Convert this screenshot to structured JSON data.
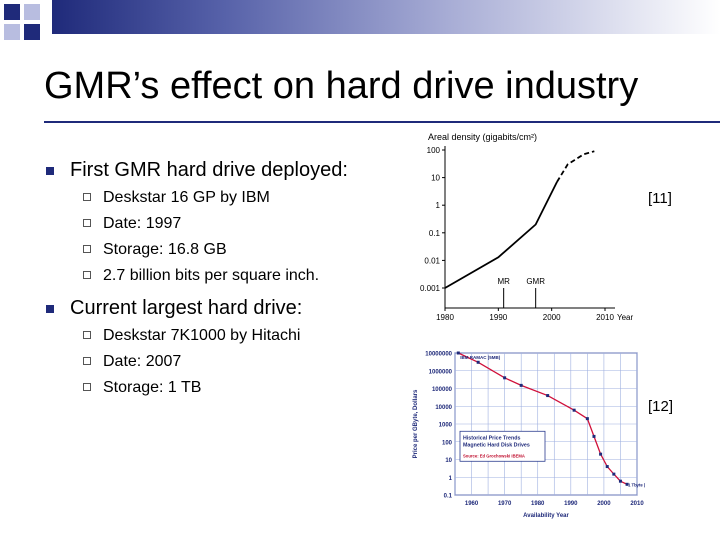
{
  "slide": {
    "title": "GMR’s effect on hard drive industry",
    "accent_color": "#1f2a7a",
    "bullets": [
      {
        "text": "First GMR hard drive deployed:",
        "sub": [
          "Deskstar 16 GP by IBM",
          "Date: 1997",
          "Storage: 16.8 GB",
          "2.7 billion bits per square inch."
        ]
      },
      {
        "text": "Current largest hard drive:",
        "sub": [
          "Deskstar 7K1000 by Hitachi",
          "Date: 2007",
          "Storage: 1 TB"
        ]
      }
    ],
    "ref1": "[11]",
    "ref2": "[12]"
  },
  "chart_data": [
    {
      "type": "line",
      "title": "Areal density (gigabits/cm²)",
      "xlabel": "Year",
      "yscale": "log",
      "xlim": [
        1980,
        2010
      ],
      "ylim": [
        0.001,
        100
      ],
      "x_ticks": [
        "1980",
        "1990",
        "2000",
        "2010"
      ],
      "y_ticks": [
        "100",
        "10",
        "1",
        "0.1",
        "0.01",
        "0.001"
      ],
      "series": [
        {
          "style": "solid",
          "x": [
            1980,
            1990,
            1997,
            2001
          ],
          "y": [
            0.001,
            0.013,
            0.2,
            7
          ]
        },
        {
          "style": "dashed",
          "x": [
            2001,
            2003,
            2006,
            2008
          ],
          "y": [
            7,
            30,
            70,
            90
          ]
        }
      ],
      "annotations": [
        {
          "label": "MR",
          "x": 1991
        },
        {
          "label": "GMR",
          "x": 1997
        }
      ]
    },
    {
      "type": "line",
      "title": "Historical Price Trends Magnetic Hard Disk Drives",
      "source": "Source: Ed Grochowski IBEMA",
      "xlabel": "Availability Year",
      "ylabel": "Price per GByte, Dollars",
      "yscale": "log",
      "xlim": [
        1955,
        2010
      ],
      "ylim": [
        0.1,
        10000000
      ],
      "x_ticks": [
        "1960",
        "1970",
        "1980",
        "1990",
        "2000",
        "2010"
      ],
      "y_ticks": [
        "10000000",
        "1000000",
        "100000",
        "10000",
        "1000",
        "100",
        "10",
        "1",
        "0.1"
      ],
      "series": [
        {
          "color": "#d0103a",
          "x": [
            1956,
            1962,
            1970,
            1975,
            1983,
            1991,
            1995,
            1997,
            1999,
            2001,
            2003,
            2005,
            2007
          ],
          "y": [
            10000000,
            3000000,
            400000,
            150000,
            40000,
            6000,
            2000,
            200,
            20,
            4,
            1.5,
            0.6,
            0.4
          ]
        }
      ],
      "annotations": [
        {
          "label": "IBM RAMAC (5MB)"
        },
        {
          "label": "1 Tbyte (estimate)"
        }
      ]
    }
  ]
}
